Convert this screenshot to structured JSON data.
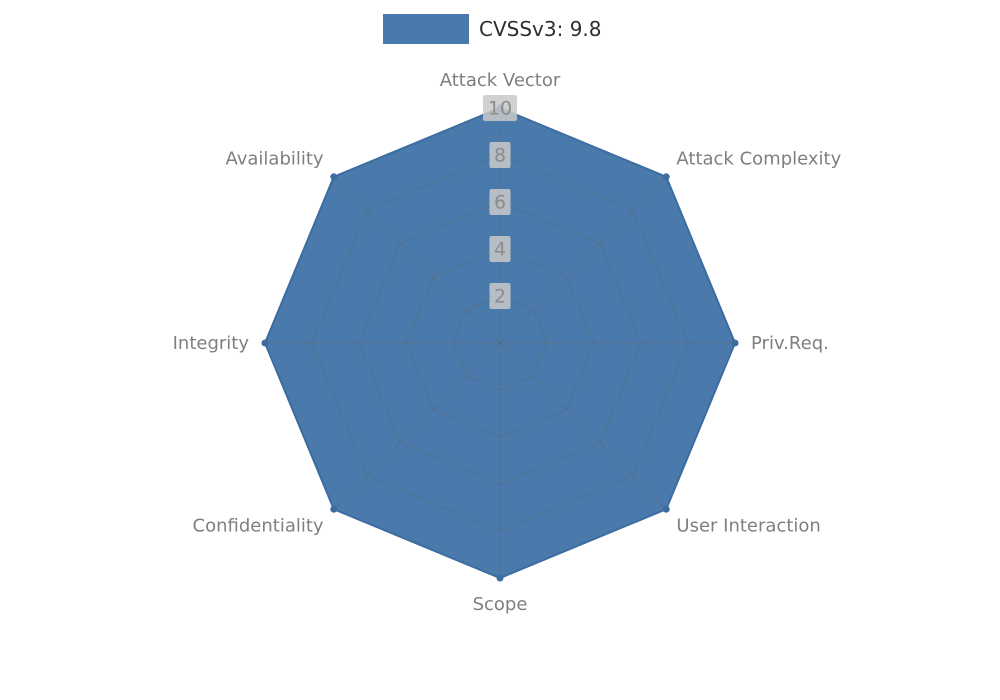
{
  "legend": {
    "label": "CVSSv3: 9.8"
  },
  "chart_data": {
    "type": "radar",
    "title": "",
    "xlabel": "",
    "ylabel": "",
    "categories": [
      "Attack Vector",
      "Attack Complexity",
      "Priv.Req.",
      "User Interaction",
      "Scope",
      "Confidentiality",
      "Integrity",
      "Availability"
    ],
    "series": [
      {
        "name": "CVSSv3: 9.8",
        "values": [
          10,
          10,
          10,
          10,
          10,
          10,
          10,
          10
        ]
      }
    ],
    "ticks": [
      2,
      4,
      6,
      8,
      10
    ],
    "rlim": [
      0,
      10
    ],
    "grid": true,
    "legend_position": "top-center",
    "colors": {
      "fill": "#4a7aab",
      "stroke": "#3d6da0",
      "grid": "#5a6570",
      "axis_label": "#7f7f7f",
      "tick_text": "#8c8c8c",
      "tick_bg": "#c9c9c9",
      "legend_text": "#2e2e2e",
      "background": "#ffffff"
    }
  }
}
